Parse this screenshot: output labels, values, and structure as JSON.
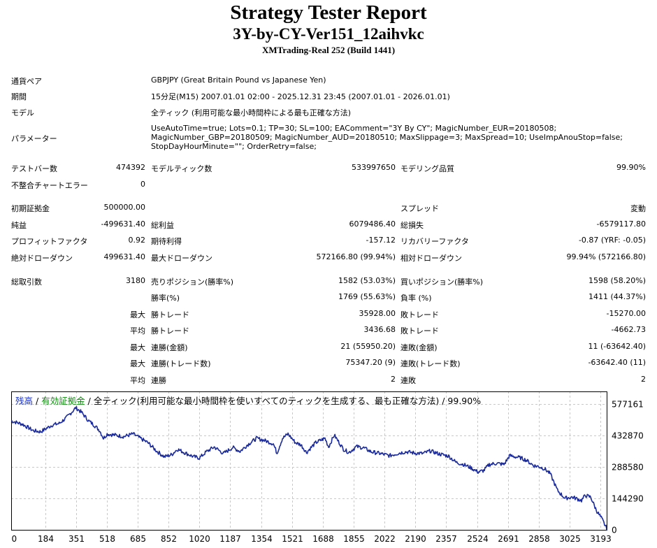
{
  "header": {
    "title": "Strategy Tester Report",
    "ea_name": "3Y-by-CY-Ver151_12aihvkc",
    "server": "XMTrading-Real 252 (Build 1441)"
  },
  "settings": {
    "symbol_label": "通貨ペア",
    "symbol_value": "GBPJPY (Great Britain Pound vs Japanese Yen)",
    "period_label": "期間",
    "period_value": "15分足(M15) 2007.01.01 02:00 - 2025.12.31 23:45 (2007.01.01 - 2026.01.01)",
    "model_label": "モデル",
    "model_value": "全ティック (利用可能な最小時間枠による最も正確な方法)",
    "params_label": "パラメーター",
    "params_value": "UseAutoTime=true; Lots=0.1; TP=30; SL=100; EAComment=\"3Y By CY\"; MagicNumber_EUR=20180508; MagicNumber_GBP=20180509; MagicNumber_AUD=20180510; MaxSlippage=3; MaxSpread=10; UseImpAnouStop=false; StopDayHourMinute=\"\"; OrderRetry=false;"
  },
  "stats": {
    "bars_label": "テストバー数",
    "bars_value": "474392",
    "ticks_label": "モデルティック数",
    "ticks_value": "533997650",
    "quality_label": "モデリング品質",
    "quality_value": "99.90%",
    "mismatch_label": "不整合チャートエラー",
    "mismatch_value": "0",
    "deposit_label": "初期証拠金",
    "deposit_value": "500000.00",
    "spread_label": "スプレッド",
    "spread_value": "変動",
    "net_label": "純益",
    "net_value": "-499631.40",
    "gross_profit_label": "総利益",
    "gross_profit_value": "6079486.40",
    "gross_loss_label": "総損失",
    "gross_loss_value": "-6579117.80",
    "pf_label": "プロフィットファクタ",
    "pf_value": "0.92",
    "payoff_label": "期待利得",
    "payoff_value": "-157.12",
    "recovery_label": "リカバリーファクタ",
    "recovery_value": "-0.87 (YRF: -0.05)",
    "abs_dd_label": "絶対ドローダウン",
    "abs_dd_value": "499631.40",
    "max_dd_label": "最大ドローダウン",
    "max_dd_value": "572166.80 (99.94%)",
    "rel_dd_label": "相対ドローダウン",
    "rel_dd_value": "99.94% (572166.80)",
    "total_trades_label": "総取引数",
    "total_trades_value": "3180",
    "short_label": "売りポジション(勝率%)",
    "short_value": "1582 (53.03%)",
    "long_label": "買いポジション(勝率%)",
    "long_value": "1598 (58.20%)",
    "win_rate_label": "勝率(%)",
    "win_rate_value": "1769 (55.63%)",
    "loss_rate_label": "負率 (%)",
    "loss_rate_value": "1411 (44.37%)",
    "largest_prefix": "最大",
    "largest_win_label": "勝トレード",
    "largest_win_value": "35928.00",
    "largest_loss_label": "敗トレード",
    "largest_loss_value": "-15270.00",
    "average_prefix": "平均",
    "avg_win_label": "勝トレード",
    "avg_win_value": "3436.68",
    "avg_loss_label": "敗トレード",
    "avg_loss_value": "-4662.73",
    "max2_prefix": "最大",
    "max_cons_win_label": "連勝(金額)",
    "max_cons_win_value": "21 (55950.20)",
    "max_cons_loss_label": "連敗(金額)",
    "max_cons_loss_value": "11 (-63642.40)",
    "max3_prefix": "最大",
    "max_cons_profit_label": "連勝(トレード数)",
    "max_cons_profit_value": "75347.20 (9)",
    "max_cons_lossamt_label": "連敗(トレード数)",
    "max_cons_lossamt_value": "-63642.40 (11)",
    "average2_prefix": "平均",
    "avg_cons_win_label": "連勝",
    "avg_cons_win_value": "2",
    "avg_cons_loss_label": "連敗",
    "avg_cons_loss_value": "2"
  },
  "legend": {
    "balance": "残高",
    "sep1": " / ",
    "equity": "有効証拠金",
    "sep2": " / ",
    "rest": "全ティック(利用可能な最小時間枠を使いすべてのティックを生成する、最も正確な方法) / 99.90%"
  },
  "colors": {
    "line": "#1a2a9a",
    "grid": "#c8c8c8",
    "axis": "#000000",
    "balance_text": "#1a32c8",
    "equity_text": "#0a8c0a"
  },
  "chart_data": {
    "type": "line",
    "title": "",
    "xlabel": "",
    "ylabel": "",
    "x_ticks": [
      0,
      184,
      351,
      518,
      685,
      852,
      1020,
      1187,
      1354,
      1521,
      1688,
      1855,
      2022,
      2190,
      2357,
      2524,
      2691,
      2858,
      3025,
      3193
    ],
    "y_ticks": [
      0,
      144290,
      288580,
      432870,
      577161
    ],
    "xlim": [
      0,
      3230
    ],
    "ylim": [
      0,
      635000
    ],
    "series": [
      {
        "name": "残高",
        "x": [
          0,
          60,
          120,
          160,
          220,
          260,
          300,
          350,
          380,
          420,
          450,
          480,
          500,
          520,
          560,
          610,
          660,
          700,
          740,
          790,
          830,
          870,
          900,
          950,
          990,
          1020,
          1060,
          1100,
          1150,
          1200,
          1240,
          1280,
          1330,
          1380,
          1420,
          1440,
          1470,
          1500,
          1540,
          1570,
          1600,
          1650,
          1700,
          1720,
          1750,
          1800,
          1830,
          1870,
          1910,
          1950,
          2000,
          2050,
          2100,
          2140,
          2190,
          2230,
          2270,
          2320,
          2370,
          2410,
          2450,
          2490,
          2530,
          2560,
          2590,
          2630,
          2670,
          2700,
          2760,
          2790,
          2830,
          2860,
          2890,
          2920,
          2960,
          3000,
          3040,
          3090,
          3110,
          3140,
          3170,
          3200,
          3230
        ],
        "values": [
          500000,
          485000,
          455000,
          450000,
          480000,
          488000,
          515000,
          560000,
          540000,
          500000,
          480000,
          455000,
          420000,
          440000,
          435000,
          428000,
          440000,
          420000,
          400000,
          360000,
          335000,
          345000,
          370000,
          350000,
          335000,
          330000,
          360000,
          380000,
          350000,
          378000,
          360000,
          390000,
          420000,
          408000,
          395000,
          352000,
          420000,
          440000,
          400000,
          390000,
          355000,
          400000,
          420000,
          380000,
          435000,
          370000,
          355000,
          382000,
          376000,
          358000,
          350000,
          340000,
          352000,
          358000,
          352000,
          350000,
          362000,
          348000,
          338000,
          310000,
          300000,
          285000,
          265000,
          272000,
          300000,
          305000,
          300000,
          340000,
          330000,
          320000,
          295000,
          290000,
          280000,
          258000,
          180000,
          145000,
          150000,
          135000,
          158000,
          150000,
          90000,
          50000,
          0
        ]
      }
    ]
  }
}
